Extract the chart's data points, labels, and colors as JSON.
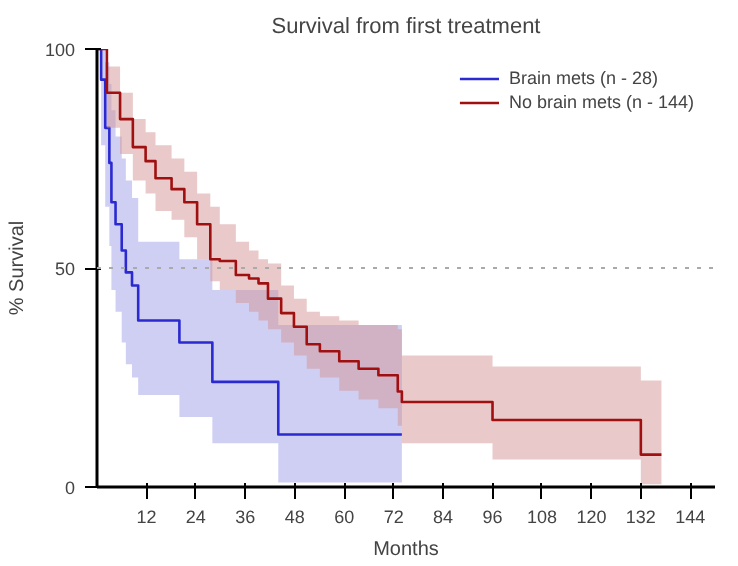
{
  "chart_data": {
    "type": "step",
    "title": "Survival from first treatment",
    "xlabel": "Months",
    "ylabel": "% Survival",
    "xlim": [
      0,
      150
    ],
    "ylim": [
      0,
      100
    ],
    "xticks": [
      12,
      24,
      36,
      48,
      60,
      72,
      84,
      96,
      108,
      120,
      132,
      144
    ],
    "yticks": [
      0,
      50,
      100
    ],
    "grid": false,
    "legend": "top right",
    "line_style": "solid",
    "ref_lines": [
      {
        "axis": "y",
        "value": 50,
        "label": null,
        "color": "#aaaaaa",
        "line_style": "dotted"
      }
    ],
    "series": [
      {
        "name": "Brain mets (n - 28)",
        "color": "#2a2ad0",
        "x": [
          0,
          1,
          2,
          3,
          3.5,
          4.5,
          6,
          7,
          8.5,
          10,
          20,
          28,
          44,
          74
        ],
        "values": [
          100,
          93,
          82,
          74,
          65,
          60,
          54,
          49,
          46,
          38,
          33,
          24,
          12,
          12
        ],
        "upper": [
          100,
          100,
          97,
          92,
          86,
          80,
          75,
          70,
          66,
          56,
          52,
          45,
          37,
          37
        ],
        "lower": [
          100,
          78,
          64,
          55,
          45,
          40,
          33,
          28,
          25,
          21,
          16,
          10,
          1,
          1
        ]
      },
      {
        "name": "No brain mets (n - 144)",
        "color": "#a01010",
        "x": [
          0,
          2.4,
          5.6,
          8.7,
          11.8,
          14.2,
          18.1,
          21.2,
          24.3,
          27.5,
          29.8,
          33.7,
          36.9,
          39.2,
          41.5,
          44.7,
          47.8,
          50.9,
          54.1,
          58.8,
          63.5,
          68.3,
          73,
          74,
          96,
          132,
          137
        ],
        "values": [
          100,
          90,
          84,
          77.6,
          74.4,
          70.5,
          68,
          65,
          60,
          52,
          51.6,
          48.4,
          47.6,
          46.5,
          43,
          39.7,
          36.6,
          32.6,
          31,
          28.7,
          27,
          25.5,
          21.8,
          19.4,
          15.3,
          7.4,
          7.4
        ],
        "upper": [
          100,
          96,
          90,
          84,
          81,
          78,
          75,
          72,
          67,
          64,
          60,
          56,
          54,
          52,
          51,
          46,
          43,
          40,
          39,
          38,
          37,
          37,
          36,
          30,
          27.5,
          24.3,
          24.3
        ],
        "lower": [
          100,
          82,
          76,
          70,
          67,
          63,
          61,
          57,
          52,
          47,
          45,
          42,
          40,
          38,
          36,
          33,
          30,
          27,
          25,
          22,
          20,
          18,
          14,
          10,
          6.3,
          0.6,
          0.6
        ]
      }
    ]
  }
}
